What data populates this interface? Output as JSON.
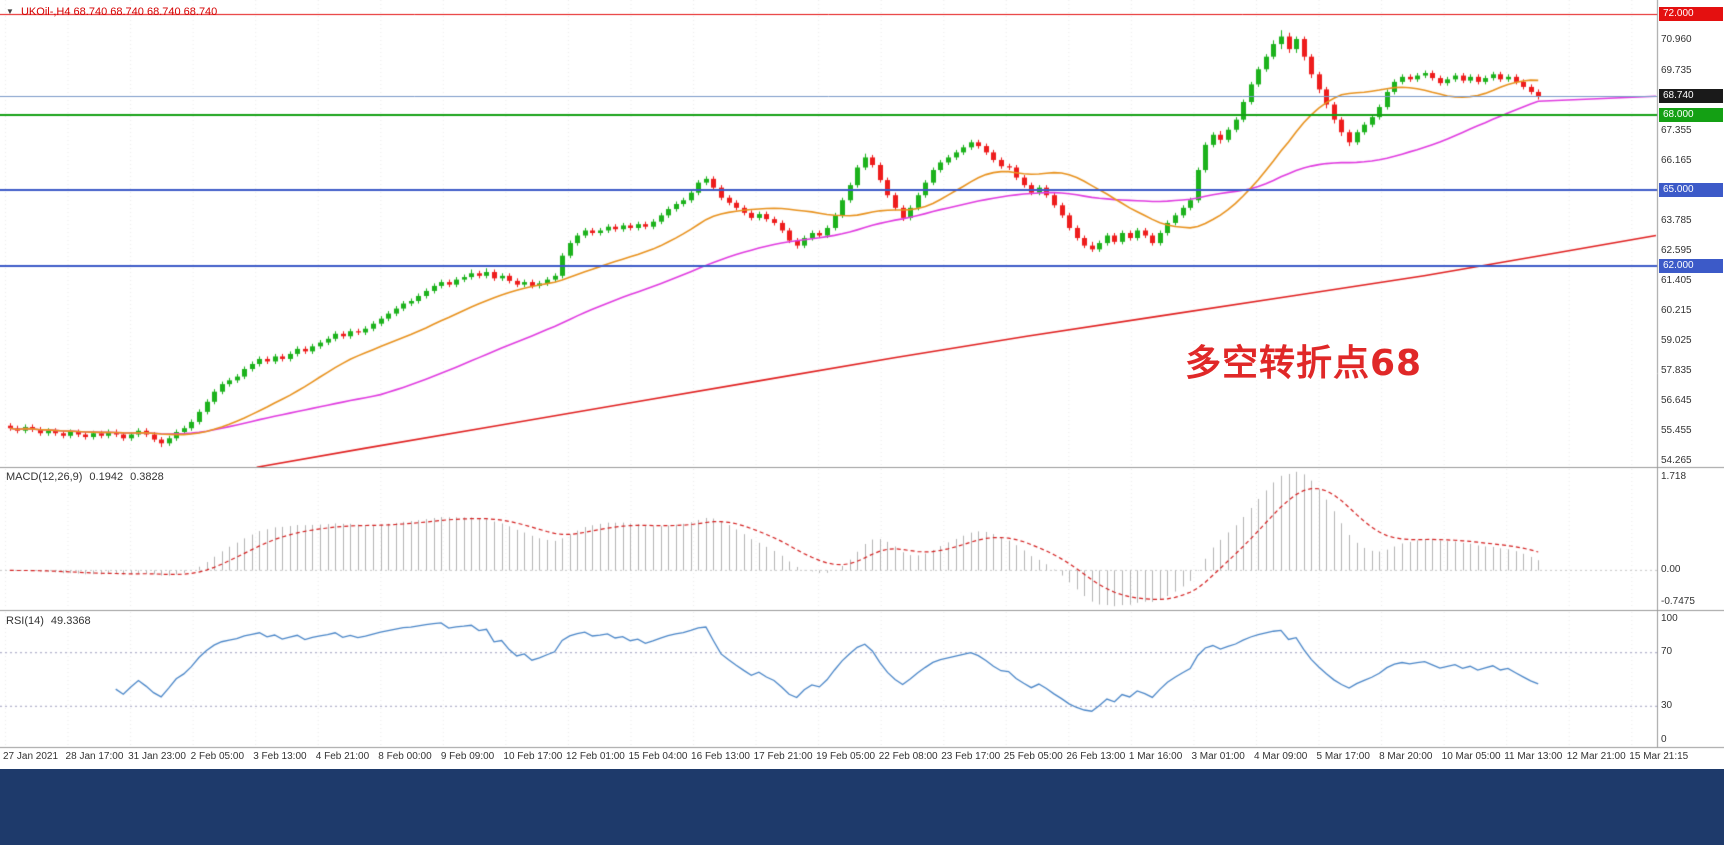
{
  "header": {
    "dropdown_icon": "▼",
    "symbol_ohlc": "UKOil-,H4  68.740 68.740 68.740 68.740"
  },
  "annotation": {
    "text": "多空转折点68",
    "color": "#e02828"
  },
  "colors": {
    "background": "#ffffff",
    "candle_up": "#1cb21c",
    "candle_down": "#ee1c1c",
    "grid": "#ececec",
    "separator": "#9a9a9a",
    "axis_text": "#333333",
    "symbol_text": "#d40000",
    "bottom_bar": "#1e3a6b",
    "current_price_line": "#7b9ac9",
    "macd_zero_line": "#c8c8c8",
    "rsi_level_line": "#a0a0c0"
  },
  "chart_data": {
    "type": "candlestick",
    "symbol": "UKOil-",
    "timeframe": "H4",
    "current_price": "68.740",
    "ylim": [
      54.05,
      72.55
    ],
    "y_tick_labels": [
      {
        "text": "70.960",
        "value": 70.96
      },
      {
        "text": "69.735",
        "value": 69.735
      },
      {
        "text": "67.355",
        "value": 67.355
      },
      {
        "text": "66.165",
        "value": 66.165
      },
      {
        "text": "63.785",
        "value": 63.785
      },
      {
        "text": "62.595",
        "value": 62.595
      },
      {
        "text": "61.405",
        "value": 61.405
      },
      {
        "text": "60.215",
        "value": 60.215
      },
      {
        "text": "59.025",
        "value": 59.025
      },
      {
        "text": "57.835",
        "value": 57.835
      },
      {
        "text": "56.645",
        "value": 56.645
      },
      {
        "text": "55.455",
        "value": 55.455
      },
      {
        "text": "54.265",
        "value": 54.265
      }
    ],
    "price_badges": [
      {
        "text": "72.000",
        "value": 72.0,
        "bg": "#e41010"
      },
      {
        "text": "68.740",
        "value": 68.74,
        "bg": "#1a1a1a"
      },
      {
        "text": "68.000",
        "value": 68.0,
        "bg": "#14a014"
      },
      {
        "text": "65.000",
        "value": 65.0,
        "bg": "#3c5ac8"
      },
      {
        "text": "62.000",
        "value": 62.0,
        "bg": "#3c5ac8"
      }
    ],
    "hlines": [
      {
        "price": 72.0,
        "color": "#e41010",
        "width": 1
      },
      {
        "price": 68.74,
        "color": "#7b9ac9",
        "width": 1
      },
      {
        "price": 68.0,
        "color": "#14a014",
        "width": 2
      },
      {
        "price": 65.0,
        "color": "#3c5ac8",
        "width": 2
      },
      {
        "price": 62.0,
        "color": "#3c5ac8",
        "width": 2
      }
    ],
    "x_tick_labels": [
      "27 Jan 2021",
      "28 Jan 17:00",
      "31 Jan 23:00",
      "2 Feb 05:00",
      "3 Feb 13:00",
      "4 Feb 21:00",
      "8 Feb 00:00",
      "9 Feb 09:00",
      "10 Feb 17:00",
      "12 Feb 01:00",
      "15 Feb 04:00",
      "16 Feb 13:00",
      "17 Feb 21:00",
      "19 Feb 05:00",
      "22 Feb 08:00",
      "23 Feb 17:00",
      "25 Feb 05:00",
      "26 Feb 13:00",
      "1 Mar 16:00",
      "3 Mar 01:00",
      "4 Mar 09:00",
      "5 Mar 17:00",
      "8 Mar 20:00",
      "10 Mar 05:00",
      "11 Mar 13:00",
      "12 Mar 21:00",
      "15 Mar 21:15"
    ],
    "candles": [
      [
        55.65,
        55.75,
        55.45,
        55.55
      ],
      [
        55.55,
        55.65,
        55.35,
        55.45
      ],
      [
        55.45,
        55.7,
        55.35,
        55.6
      ],
      [
        55.6,
        55.7,
        55.4,
        55.5
      ],
      [
        55.5,
        55.6,
        55.25,
        55.35
      ],
      [
        55.35,
        55.55,
        55.25,
        55.45
      ],
      [
        55.45,
        55.55,
        55.25,
        55.35
      ],
      [
        55.35,
        55.45,
        55.15,
        55.25
      ],
      [
        55.25,
        55.5,
        55.15,
        55.4
      ],
      [
        55.4,
        55.5,
        55.2,
        55.3
      ],
      [
        55.3,
        55.4,
        55.1,
        55.2
      ],
      [
        55.2,
        55.45,
        55.1,
        55.35
      ],
      [
        55.35,
        55.45,
        55.15,
        55.25
      ],
      [
        55.25,
        55.5,
        55.15,
        55.4
      ],
      [
        55.4,
        55.5,
        55.2,
        55.3
      ],
      [
        55.3,
        55.4,
        55.05,
        55.15
      ],
      [
        55.15,
        55.4,
        55.05,
        55.3
      ],
      [
        55.3,
        55.55,
        55.2,
        55.45
      ],
      [
        55.45,
        55.55,
        55.2,
        55.3
      ],
      [
        55.3,
        55.4,
        55.0,
        55.1
      ],
      [
        55.1,
        55.2,
        54.8,
        54.95
      ],
      [
        54.95,
        55.25,
        54.85,
        55.15
      ],
      [
        55.15,
        55.5,
        55.05,
        55.4
      ],
      [
        55.4,
        55.65,
        55.3,
        55.55
      ],
      [
        55.55,
        55.9,
        55.45,
        55.8
      ],
      [
        55.8,
        56.3,
        55.7,
        56.2
      ],
      [
        56.2,
        56.7,
        56.1,
        56.6
      ],
      [
        56.6,
        57.1,
        56.5,
        57.0
      ],
      [
        57.0,
        57.4,
        56.9,
        57.3
      ],
      [
        57.3,
        57.55,
        57.2,
        57.45
      ],
      [
        57.45,
        57.7,
        57.35,
        57.6
      ],
      [
        57.6,
        58.0,
        57.5,
        57.9
      ],
      [
        57.9,
        58.2,
        57.8,
        58.1
      ],
      [
        58.1,
        58.4,
        58.0,
        58.3
      ],
      [
        58.3,
        58.4,
        58.1,
        58.2
      ],
      [
        58.2,
        58.5,
        58.1,
        58.4
      ],
      [
        58.4,
        58.5,
        58.2,
        58.3
      ],
      [
        58.3,
        58.6,
        58.2,
        58.5
      ],
      [
        58.5,
        58.8,
        58.4,
        58.7
      ],
      [
        58.7,
        58.8,
        58.5,
        58.6
      ],
      [
        58.6,
        58.9,
        58.5,
        58.8
      ],
      [
        58.8,
        59.05,
        58.7,
        58.95
      ],
      [
        58.95,
        59.2,
        58.85,
        59.1
      ],
      [
        59.1,
        59.4,
        59.0,
        59.3
      ],
      [
        59.3,
        59.4,
        59.1,
        59.2
      ],
      [
        59.2,
        59.5,
        59.1,
        59.4
      ],
      [
        59.4,
        59.5,
        59.25,
        59.35
      ],
      [
        59.35,
        59.6,
        59.25,
        59.5
      ],
      [
        59.5,
        59.8,
        59.4,
        59.7
      ],
      [
        59.7,
        60.0,
        59.6,
        59.9
      ],
      [
        59.9,
        60.2,
        59.8,
        60.1
      ],
      [
        60.1,
        60.4,
        60.0,
        60.3
      ],
      [
        60.3,
        60.6,
        60.2,
        60.5
      ],
      [
        60.5,
        60.7,
        60.4,
        60.6
      ],
      [
        60.6,
        60.9,
        60.5,
        60.8
      ],
      [
        60.8,
        61.1,
        60.7,
        61.0
      ],
      [
        61.0,
        61.3,
        60.9,
        61.2
      ],
      [
        61.2,
        61.45,
        61.1,
        61.35
      ],
      [
        61.35,
        61.45,
        61.15,
        61.25
      ],
      [
        61.25,
        61.55,
        61.15,
        61.45
      ],
      [
        61.45,
        61.65,
        61.35,
        61.55
      ],
      [
        61.55,
        61.85,
        61.45,
        61.7
      ],
      [
        61.7,
        61.8,
        61.5,
        61.6
      ],
      [
        61.6,
        61.9,
        61.5,
        61.75
      ],
      [
        61.75,
        61.85,
        61.4,
        61.5
      ],
      [
        61.5,
        61.7,
        61.4,
        61.6
      ],
      [
        61.6,
        61.7,
        61.3,
        61.4
      ],
      [
        61.4,
        61.5,
        61.15,
        61.25
      ],
      [
        61.25,
        61.45,
        61.15,
        61.35
      ],
      [
        61.35,
        61.45,
        61.1,
        61.2
      ],
      [
        61.2,
        61.4,
        61.1,
        61.3
      ],
      [
        61.3,
        61.55,
        61.2,
        61.45
      ],
      [
        61.45,
        61.7,
        61.35,
        61.6
      ],
      [
        61.6,
        62.5,
        61.5,
        62.4
      ],
      [
        62.4,
        63.0,
        62.3,
        62.9
      ],
      [
        62.9,
        63.3,
        62.8,
        63.2
      ],
      [
        63.2,
        63.5,
        63.1,
        63.4
      ],
      [
        63.4,
        63.5,
        63.2,
        63.3
      ],
      [
        63.3,
        63.5,
        63.2,
        63.4
      ],
      [
        63.4,
        63.65,
        63.3,
        63.55
      ],
      [
        63.55,
        63.65,
        63.35,
        63.45
      ],
      [
        63.45,
        63.7,
        63.35,
        63.6
      ],
      [
        63.6,
        63.7,
        63.4,
        63.5
      ],
      [
        63.5,
        63.75,
        63.4,
        63.65
      ],
      [
        63.65,
        63.75,
        63.45,
        63.55
      ],
      [
        63.55,
        63.85,
        63.45,
        63.75
      ],
      [
        63.75,
        64.1,
        63.65,
        64.0
      ],
      [
        64.0,
        64.35,
        63.9,
        64.25
      ],
      [
        64.25,
        64.55,
        64.15,
        64.45
      ],
      [
        64.45,
        64.7,
        64.35,
        64.6
      ],
      [
        64.6,
        65.0,
        64.5,
        64.9
      ],
      [
        64.9,
        65.4,
        64.8,
        65.3
      ],
      [
        65.3,
        65.55,
        65.2,
        65.45
      ],
      [
        65.45,
        65.55,
        65.0,
        65.1
      ],
      [
        65.1,
        65.2,
        64.6,
        64.7
      ],
      [
        64.7,
        64.8,
        64.4,
        64.5
      ],
      [
        64.5,
        64.6,
        64.2,
        64.3
      ],
      [
        64.3,
        64.4,
        64.0,
        64.1
      ],
      [
        64.1,
        64.2,
        63.8,
        63.9
      ],
      [
        63.9,
        64.15,
        63.8,
        64.05
      ],
      [
        64.05,
        64.15,
        63.75,
        63.85
      ],
      [
        63.85,
        63.95,
        63.6,
        63.7
      ],
      [
        63.7,
        63.8,
        63.3,
        63.4
      ],
      [
        63.4,
        63.5,
        62.9,
        63.0
      ],
      [
        63.0,
        63.1,
        62.68,
        62.8
      ],
      [
        62.8,
        63.2,
        62.7,
        63.1
      ],
      [
        63.1,
        63.4,
        63.0,
        63.3
      ],
      [
        63.3,
        63.4,
        63.1,
        63.2
      ],
      [
        63.2,
        63.6,
        63.1,
        63.5
      ],
      [
        63.5,
        64.1,
        63.4,
        64.0
      ],
      [
        64.0,
        64.7,
        63.9,
        64.6
      ],
      [
        64.6,
        65.3,
        64.5,
        65.2
      ],
      [
        65.2,
        66.0,
        65.1,
        65.9
      ],
      [
        65.9,
        66.45,
        65.8,
        66.3
      ],
      [
        66.3,
        66.4,
        65.9,
        66.0
      ],
      [
        66.0,
        66.1,
        65.3,
        65.4
      ],
      [
        65.4,
        65.5,
        64.7,
        64.8
      ],
      [
        64.8,
        64.9,
        64.2,
        64.3
      ],
      [
        64.3,
        64.4,
        63.78,
        63.9
      ],
      [
        63.9,
        64.4,
        63.8,
        64.3
      ],
      [
        64.3,
        64.9,
        64.2,
        64.8
      ],
      [
        64.8,
        65.4,
        64.7,
        65.3
      ],
      [
        65.3,
        65.9,
        65.2,
        65.8
      ],
      [
        65.8,
        66.2,
        65.7,
        66.1
      ],
      [
        66.1,
        66.4,
        66.0,
        66.3
      ],
      [
        66.3,
        66.6,
        66.2,
        66.5
      ],
      [
        66.5,
        66.8,
        66.4,
        66.7
      ],
      [
        66.7,
        67.0,
        66.6,
        66.9
      ],
      [
        66.9,
        67.0,
        66.65,
        66.75
      ],
      [
        66.75,
        66.85,
        66.4,
        66.5
      ],
      [
        66.5,
        66.6,
        66.1,
        66.2
      ],
      [
        66.2,
        66.3,
        65.85,
        65.95
      ],
      [
        65.95,
        66.05,
        65.8,
        65.9
      ],
      [
        65.9,
        66.0,
        65.4,
        65.5
      ],
      [
        65.5,
        65.6,
        65.1,
        65.2
      ],
      [
        65.2,
        65.3,
        64.8,
        64.9
      ],
      [
        64.9,
        65.2,
        64.8,
        65.1
      ],
      [
        65.1,
        65.2,
        64.7,
        64.8
      ],
      [
        64.8,
        64.9,
        64.3,
        64.4
      ],
      [
        64.4,
        64.5,
        63.9,
        64.0
      ],
      [
        64.0,
        64.1,
        63.4,
        63.5
      ],
      [
        63.5,
        63.6,
        63.0,
        63.1
      ],
      [
        63.1,
        63.2,
        62.7,
        62.8
      ],
      [
        62.8,
        62.95,
        62.55,
        62.65
      ],
      [
        62.65,
        63.0,
        62.55,
        62.9
      ],
      [
        62.9,
        63.3,
        62.8,
        63.2
      ],
      [
        63.2,
        63.3,
        62.85,
        62.95
      ],
      [
        62.95,
        63.4,
        62.85,
        63.3
      ],
      [
        63.3,
        63.4,
        63.0,
        63.1
      ],
      [
        63.1,
        63.5,
        63.0,
        63.4
      ],
      [
        63.4,
        63.5,
        63.1,
        63.2
      ],
      [
        63.2,
        63.3,
        62.8,
        62.9
      ],
      [
        62.9,
        63.4,
        62.8,
        63.3
      ],
      [
        63.3,
        63.8,
        63.2,
        63.7
      ],
      [
        63.7,
        64.1,
        63.6,
        64.0
      ],
      [
        64.0,
        64.4,
        63.9,
        64.3
      ],
      [
        64.3,
        64.7,
        64.2,
        64.6
      ],
      [
        64.6,
        65.9,
        64.5,
        65.8
      ],
      [
        65.8,
        66.9,
        65.7,
        66.8
      ],
      [
        66.8,
        67.3,
        66.7,
        67.2
      ],
      [
        67.2,
        67.35,
        66.85,
        67.0
      ],
      [
        67.0,
        67.5,
        66.9,
        67.4
      ],
      [
        67.4,
        67.9,
        67.3,
        67.8
      ],
      [
        67.8,
        68.6,
        67.7,
        68.5
      ],
      [
        68.5,
        69.3,
        68.4,
        69.2
      ],
      [
        69.2,
        69.9,
        69.1,
        69.8
      ],
      [
        69.8,
        70.4,
        69.7,
        70.3
      ],
      [
        70.3,
        70.95,
        70.2,
        70.8
      ],
      [
        70.8,
        71.35,
        70.6,
        71.1
      ],
      [
        71.1,
        71.25,
        70.45,
        70.6
      ],
      [
        70.6,
        71.1,
        70.45,
        71.0
      ],
      [
        71.0,
        71.1,
        70.15,
        70.3
      ],
      [
        70.3,
        70.4,
        69.45,
        69.6
      ],
      [
        69.6,
        69.7,
        68.85,
        69.0
      ],
      [
        69.0,
        69.1,
        68.25,
        68.4
      ],
      [
        68.4,
        68.5,
        67.65,
        67.8
      ],
      [
        67.8,
        67.9,
        67.15,
        67.3
      ],
      [
        67.3,
        67.4,
        66.75,
        66.9
      ],
      [
        66.9,
        67.4,
        66.8,
        67.3
      ],
      [
        67.3,
        67.7,
        67.2,
        67.6
      ],
      [
        67.6,
        68.0,
        67.5,
        67.9
      ],
      [
        67.9,
        68.4,
        67.8,
        68.3
      ],
      [
        68.3,
        69.0,
        68.2,
        68.9
      ],
      [
        68.9,
        69.4,
        68.8,
        69.3
      ],
      [
        69.3,
        69.6,
        69.2,
        69.5
      ],
      [
        69.5,
        69.6,
        69.3,
        69.4
      ],
      [
        69.4,
        69.65,
        69.3,
        69.55
      ],
      [
        69.55,
        69.75,
        69.45,
        69.65
      ],
      [
        69.65,
        69.75,
        69.35,
        69.45
      ],
      [
        69.45,
        69.55,
        69.15,
        69.25
      ],
      [
        69.25,
        69.5,
        69.15,
        69.4
      ],
      [
        69.4,
        69.65,
        69.3,
        69.55
      ],
      [
        69.55,
        69.65,
        69.25,
        69.35
      ],
      [
        69.35,
        69.6,
        69.25,
        69.5
      ],
      [
        69.5,
        69.6,
        69.2,
        69.3
      ],
      [
        69.3,
        69.55,
        69.2,
        69.45
      ],
      [
        69.45,
        69.7,
        69.35,
        69.6
      ],
      [
        69.6,
        69.7,
        69.3,
        69.4
      ],
      [
        69.4,
        69.6,
        69.3,
        69.5
      ],
      [
        69.5,
        69.6,
        69.2,
        69.3
      ],
      [
        69.3,
        69.4,
        69.0,
        69.1
      ],
      [
        69.1,
        69.2,
        68.8,
        68.9
      ],
      [
        68.9,
        69.0,
        68.6,
        68.74
      ]
    ],
    "overlays": {
      "ma_fast": {
        "kind": "sma",
        "period": 20,
        "color": "#e8921e"
      },
      "ma_slow": {
        "kind": "sma",
        "period": 50,
        "color": "#e03ce0"
      },
      "trend_ma": {
        "kind": "polyline",
        "color": "#e02020",
        "points": [
          [
            0.155,
            54.0
          ],
          [
            0.22,
            54.75
          ],
          [
            0.3,
            55.65
          ],
          [
            0.38,
            56.55
          ],
          [
            0.46,
            57.45
          ],
          [
            0.54,
            58.35
          ],
          [
            0.62,
            59.2
          ],
          [
            0.7,
            60.0
          ],
          [
            0.78,
            60.8
          ],
          [
            0.86,
            61.6
          ],
          [
            0.93,
            62.4
          ],
          [
            1.0,
            63.2
          ]
        ]
      }
    },
    "indicators": {
      "macd": {
        "caption": "MACD(12,26,9)",
        "value_main": "0.1942",
        "value_signal": "0.3828",
        "fast": 12,
        "slow": 26,
        "signal": 9,
        "axis_top_label": "1.718",
        "axis_zero_label": "0.00",
        "axis_bottom_label": "-0.7475",
        "histogram_color": "#b4b4b4",
        "signal_color": "#d42020"
      },
      "rsi": {
        "caption": "RSI(14)",
        "value": "49.3368",
        "period": 14,
        "color": "#4a86c8",
        "levels": [
          70,
          30
        ],
        "axis_labels": [
          {
            "text": "100",
            "value": 100
          },
          {
            "text": "70",
            "value": 70
          },
          {
            "text": "30",
            "value": 30
          },
          {
            "text": "0",
            "value": 0
          }
        ]
      }
    }
  }
}
